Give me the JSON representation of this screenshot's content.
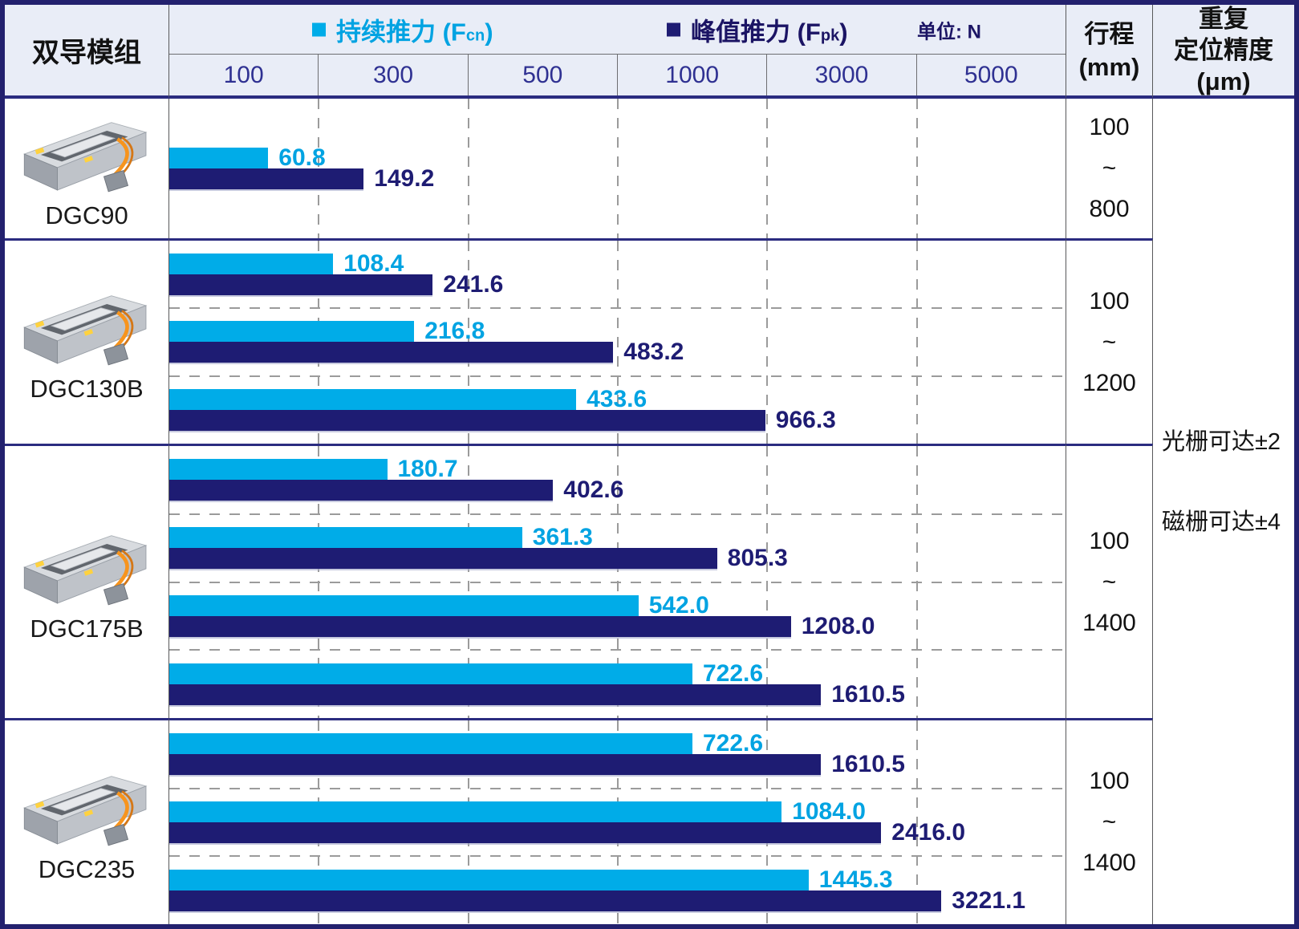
{
  "header": {
    "module_col": "双导模组",
    "legend_fcn": {
      "prefix": "持续推力 (F",
      "sub": "cn",
      "suffix": ")"
    },
    "legend_fpk": {
      "prefix": "峰值推力 (F",
      "sub": "pk",
      "suffix": ")"
    },
    "unit": "单位: N",
    "stroke_lines": [
      "行程",
      "(mm)"
    ],
    "accuracy_lines": [
      "重复",
      "定位精度",
      "(μm)"
    ]
  },
  "accuracy_values": [
    "光栅可达±2",
    "磁栅可达±4"
  ],
  "chart_data": {
    "type": "bar",
    "orientation": "horizontal",
    "unit": "N",
    "axis_tick_labels": [
      "100",
      "300",
      "500",
      "1000",
      "3000",
      "5000"
    ],
    "axis_tick_values": [
      100,
      300,
      500,
      1000,
      3000,
      5000
    ],
    "axis_note": "piecewise-linear scale: equal spacing between consecutive tick gridlines, 0 at left edge",
    "grid": "dashed vertical gridlines at each tick",
    "legend_position": "top",
    "series": [
      {
        "name": "持续推力 (Fcn)",
        "color": "#00ACE8"
      },
      {
        "name": "峰值推力 (Fpk)",
        "color": "#1E1C73"
      }
    ],
    "models": [
      {
        "name": "DGC90",
        "stroke_mm": [
          "100",
          "~",
          "800"
        ],
        "rows": [
          {
            "fcn": 60.8,
            "fcn_label": "60.8",
            "fpk": 149.2,
            "fpk_label": "149.2"
          }
        ]
      },
      {
        "name": "DGC130B",
        "stroke_mm": [
          "100",
          "~",
          "1200"
        ],
        "rows": [
          {
            "fcn": 108.4,
            "fcn_label": "108.4",
            "fpk": 241.6,
            "fpk_label": "241.6"
          },
          {
            "fcn": 216.8,
            "fcn_label": "216.8",
            "fpk": 483.2,
            "fpk_label": "483.2"
          },
          {
            "fcn": 433.6,
            "fcn_label": "433.6",
            "fpk": 966.3,
            "fpk_label": "966.3"
          }
        ]
      },
      {
        "name": "DGC175B",
        "stroke_mm": [
          "100",
          "~",
          "1400"
        ],
        "rows": [
          {
            "fcn": 180.7,
            "fcn_label": "180.7",
            "fpk": 402.6,
            "fpk_label": "402.6"
          },
          {
            "fcn": 361.3,
            "fcn_label": "361.3",
            "fpk": 805.3,
            "fpk_label": "805.3"
          },
          {
            "fcn": 542.0,
            "fcn_label": "542.0",
            "fpk": 1208.0,
            "fpk_label": "1208.0"
          },
          {
            "fcn": 722.6,
            "fcn_label": "722.6",
            "fpk": 1610.5,
            "fpk_label": "1610.5"
          }
        ]
      },
      {
        "name": "DGC235",
        "stroke_mm": [
          "100",
          "~",
          "1400"
        ],
        "rows": [
          {
            "fcn": 722.6,
            "fcn_label": "722.6",
            "fpk": 1610.5,
            "fpk_label": "1610.5"
          },
          {
            "fcn": 1084.0,
            "fcn_label": "1084.0",
            "fpk": 2416.0,
            "fpk_label": "2416.0"
          },
          {
            "fcn": 1445.3,
            "fcn_label": "1445.3",
            "fpk": 3221.1,
            "fpk_label": "3221.1"
          }
        ]
      }
    ],
    "colors": {
      "fcn_bar": "#00ACE8",
      "fpk_bar": "#1E1C73",
      "fcn_text": "#00A3E2",
      "fpk_text": "#1B1464",
      "table_border": "#23216E",
      "section_line": "#2B2C80",
      "header_bg": "#E9EDF7",
      "tick_text": "#2F3192"
    }
  }
}
